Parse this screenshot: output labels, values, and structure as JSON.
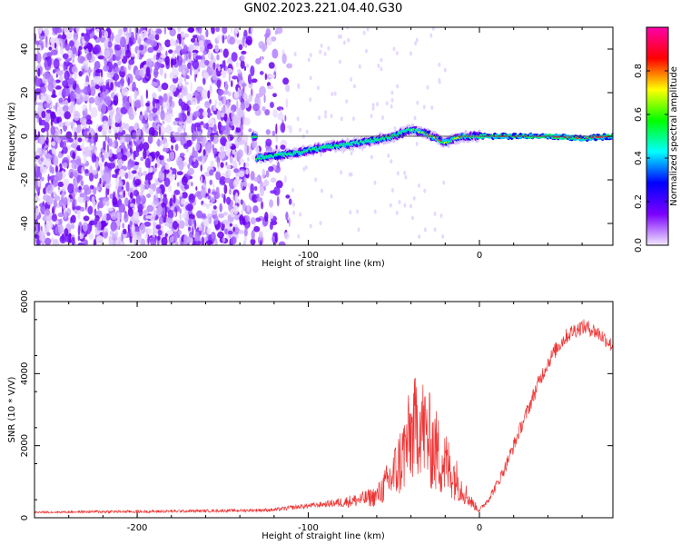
{
  "title": "GN02.2023.221.04.40.G30",
  "chart_data": [
    {
      "type": "heatmap",
      "xlabel": "Height of straight line (km)",
      "ylabel": "Frequency (Hz)",
      "xlim": [
        -260,
        78
      ],
      "ylim": [
        -50,
        50
      ],
      "xticks": [
        -200,
        -100,
        0
      ],
      "yticks": [
        -40,
        -20,
        0,
        20,
        40
      ],
      "colorbar": {
        "label": "Normalized spectral amplitude",
        "range": [
          0,
          1
        ],
        "ticks": [
          "0.0",
          "0.2",
          "0.4",
          "0.6",
          "0.8"
        ],
        "colors": [
          "#f3eaff",
          "#7b00ff",
          "#0000ff",
          "#00ffff",
          "#00ff00",
          "#ffff00",
          "#ff0000",
          "#ff00aa"
        ]
      },
      "ridge": {
        "x": [
          -130,
          -110,
          -90,
          -70,
          -50,
          -40,
          -30,
          -20,
          -10,
          0,
          20,
          40,
          60,
          78
        ],
        "y": [
          -10,
          -8,
          -5,
          -3,
          0,
          3,
          1,
          -3,
          0,
          0,
          0,
          0,
          -1,
          0
        ]
      }
    },
    {
      "type": "line",
      "xlabel": "Height of straight line (km)",
      "ylabel": "SNR (10 * V/V)",
      "xlim": [
        -260,
        78
      ],
      "ylim": [
        0,
        6000
      ],
      "xticks": [
        -200,
        -100,
        0
      ],
      "yticks": [
        0,
        2000,
        4000,
        6000
      ],
      "color": "#ee3333",
      "series": {
        "x": [
          -260,
          -240,
          -220,
          -200,
          -180,
          -160,
          -140,
          -120,
          -110,
          -100,
          -90,
          -80,
          -70,
          -60,
          -55,
          -50,
          -45,
          -40,
          -35,
          -30,
          -25,
          -20,
          -15,
          -10,
          -5,
          0,
          5,
          10,
          15,
          20,
          25,
          30,
          35,
          40,
          45,
          50,
          55,
          60,
          65,
          70,
          75,
          78
        ],
        "y": [
          150,
          160,
          170,
          170,
          180,
          190,
          200,
          220,
          280,
          330,
          380,
          430,
          500,
          600,
          900,
          1200,
          1700,
          2300,
          2700,
          2200,
          1800,
          1500,
          1200,
          800,
          450,
          200,
          500,
          900,
          1400,
          2000,
          2600,
          3200,
          3800,
          4300,
          4700,
          5000,
          5200,
          5300,
          5250,
          5100,
          4900,
          4750
        ],
        "noise": [
          30,
          30,
          40,
          40,
          40,
          40,
          40,
          50,
          60,
          70,
          80,
          150,
          200,
          300,
          500,
          800,
          1100,
          1400,
          1500,
          1400,
          1200,
          1000,
          700,
          400,
          200,
          60,
          100,
          150,
          180,
          200,
          200,
          220,
          220,
          220,
          220,
          220,
          220,
          220,
          220,
          220,
          200,
          200
        ]
      }
    }
  ]
}
